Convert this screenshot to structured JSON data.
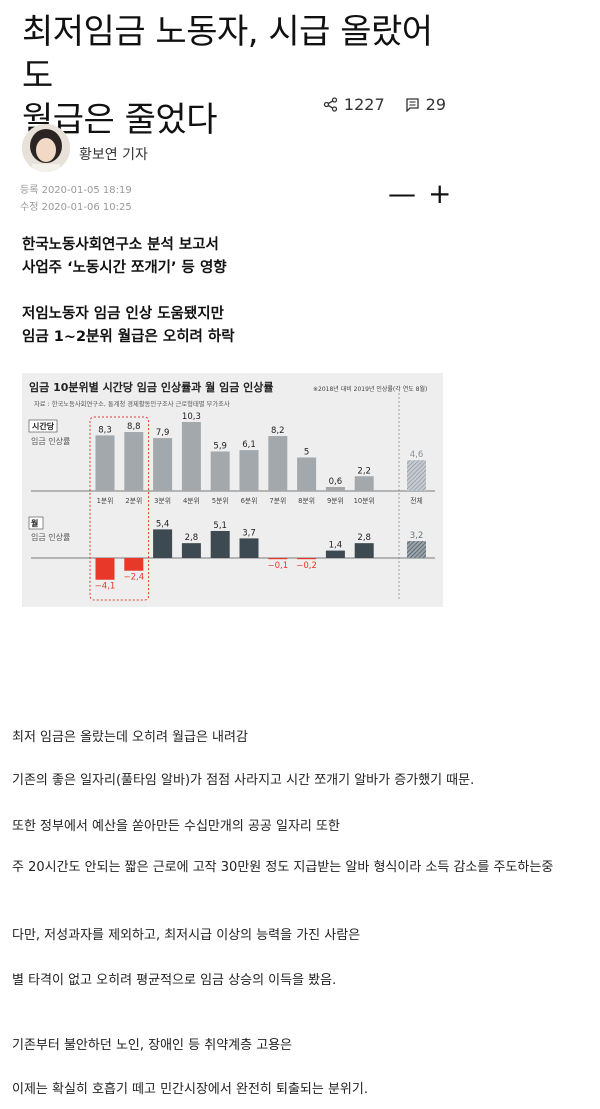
{
  "article": {
    "title_line1": "최저임금 노동자, 시급 올랐어도",
    "title_line2": "월급은 줄었다",
    "share_count": "1227",
    "comment_count": "29",
    "reporter": "황보연 기자",
    "registered": "등록 2020-01-05 18:19",
    "modified": "수정 2020-01-06 10:25",
    "zoom_out": "—",
    "zoom_in": "+",
    "summary": [
      "한국노동사회연구소 분석 보고서",
      "사업주 ‘노동시간 쪼개기’ 등 영향",
      "저임노동자 임금 인상 도움됐지만",
      "임금 1~2분위 월급은 오히려 하락"
    ]
  },
  "chart_data": {
    "type": "bar",
    "title": "임금 10분위별 시간당 임금 인상률과 월 임금 인상률",
    "note": "※2018년 대비 2019년 인상률(각 연도 8월)",
    "source": "자료 : 한국노동사회연구소, 통계청 경제활동인구조사 근로형태별 부가조사",
    "categories": [
      "1분위",
      "2분위",
      "3분위",
      "4분위",
      "5분위",
      "6분위",
      "7분위",
      "8분위",
      "9분위",
      "10분위"
    ],
    "total_label": "전체",
    "series": [
      {
        "name": "시간당",
        "sublabel": "임금 인상률",
        "values": [
          8.3,
          8.8,
          7.9,
          10.3,
          5.9,
          6.1,
          8.2,
          5,
          0.6,
          2.2
        ],
        "labels": [
          "8,3",
          "8,8",
          "7,9",
          "10,3",
          "5,9",
          "6,1",
          "8,2",
          "5",
          "0,6",
          "2,2"
        ],
        "total": 4.6,
        "total_label": "4,6"
      },
      {
        "name": "월",
        "sublabel": "임금 인상률",
        "values": [
          -4.1,
          -2.4,
          5.4,
          2.8,
          5.1,
          3.7,
          -0.1,
          -0.2,
          1.4,
          2.8
        ],
        "labels": [
          "−4,1",
          "−2,4",
          "5,4",
          "2,8",
          "5,1",
          "3,7",
          "−0,1",
          "−0,2",
          "1,4",
          "2,8"
        ],
        "total": 3.2,
        "total_label": "3,2"
      }
    ],
    "colors": {
      "hourly": "#a3a8ad",
      "monthly_pos": "#3d4a52",
      "monthly_neg": "#e8382a",
      "highlight": "#e8382a"
    }
  },
  "body": [
    "최저 임금은 올랐는데 오히려 월급은 내려감",
    "기존의 좋은 일자리(풀타임 알바)가 점점 사라지고 시간 쪼개기 알바가 증가했기 때문.",
    "또한 정부에서 예산을 쏟아만든 수십만개의 공공 일자리 또한",
    "주 20시간도 안되는 짧은 근로에 고작 30만원 정도 지급받는 알바 형식이라 소득 감소를 주도하는중",
    "다만, 저성과자를 제외하고, 최저시급 이상의 능력을 가진 사람은",
    "별 타격이 없고 오히려 평균적으로 임금 상승의 이득을 봤음.",
    "기존부터 불안하던 노인, 장애인 등 취약계층 고용은",
    "이제는 확실히 호흡기 떼고 민간시장에서 완전히 퇴출되는 분위기."
  ]
}
